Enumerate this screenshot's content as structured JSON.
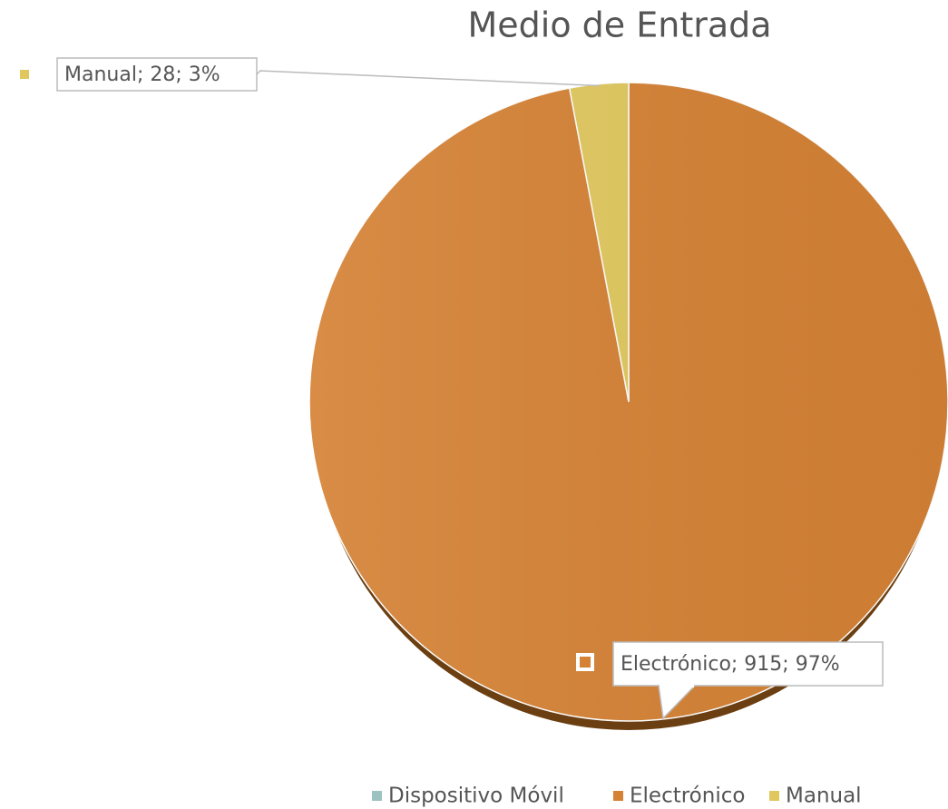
{
  "chart_data": {
    "type": "pie",
    "title": "Medio de Entrada",
    "categories": [
      "Dispositivo Móvil",
      "Electrónico",
      "Manual"
    ],
    "values": [
      0,
      915,
      28
    ],
    "value_labels": [
      null,
      "Electrónico; 915; 97%",
      "Manual; 28; 3%"
    ],
    "colors": [
      "#9dc3c1",
      "#d58235",
      "#e0c85e"
    ],
    "legend": "bottom"
  }
}
